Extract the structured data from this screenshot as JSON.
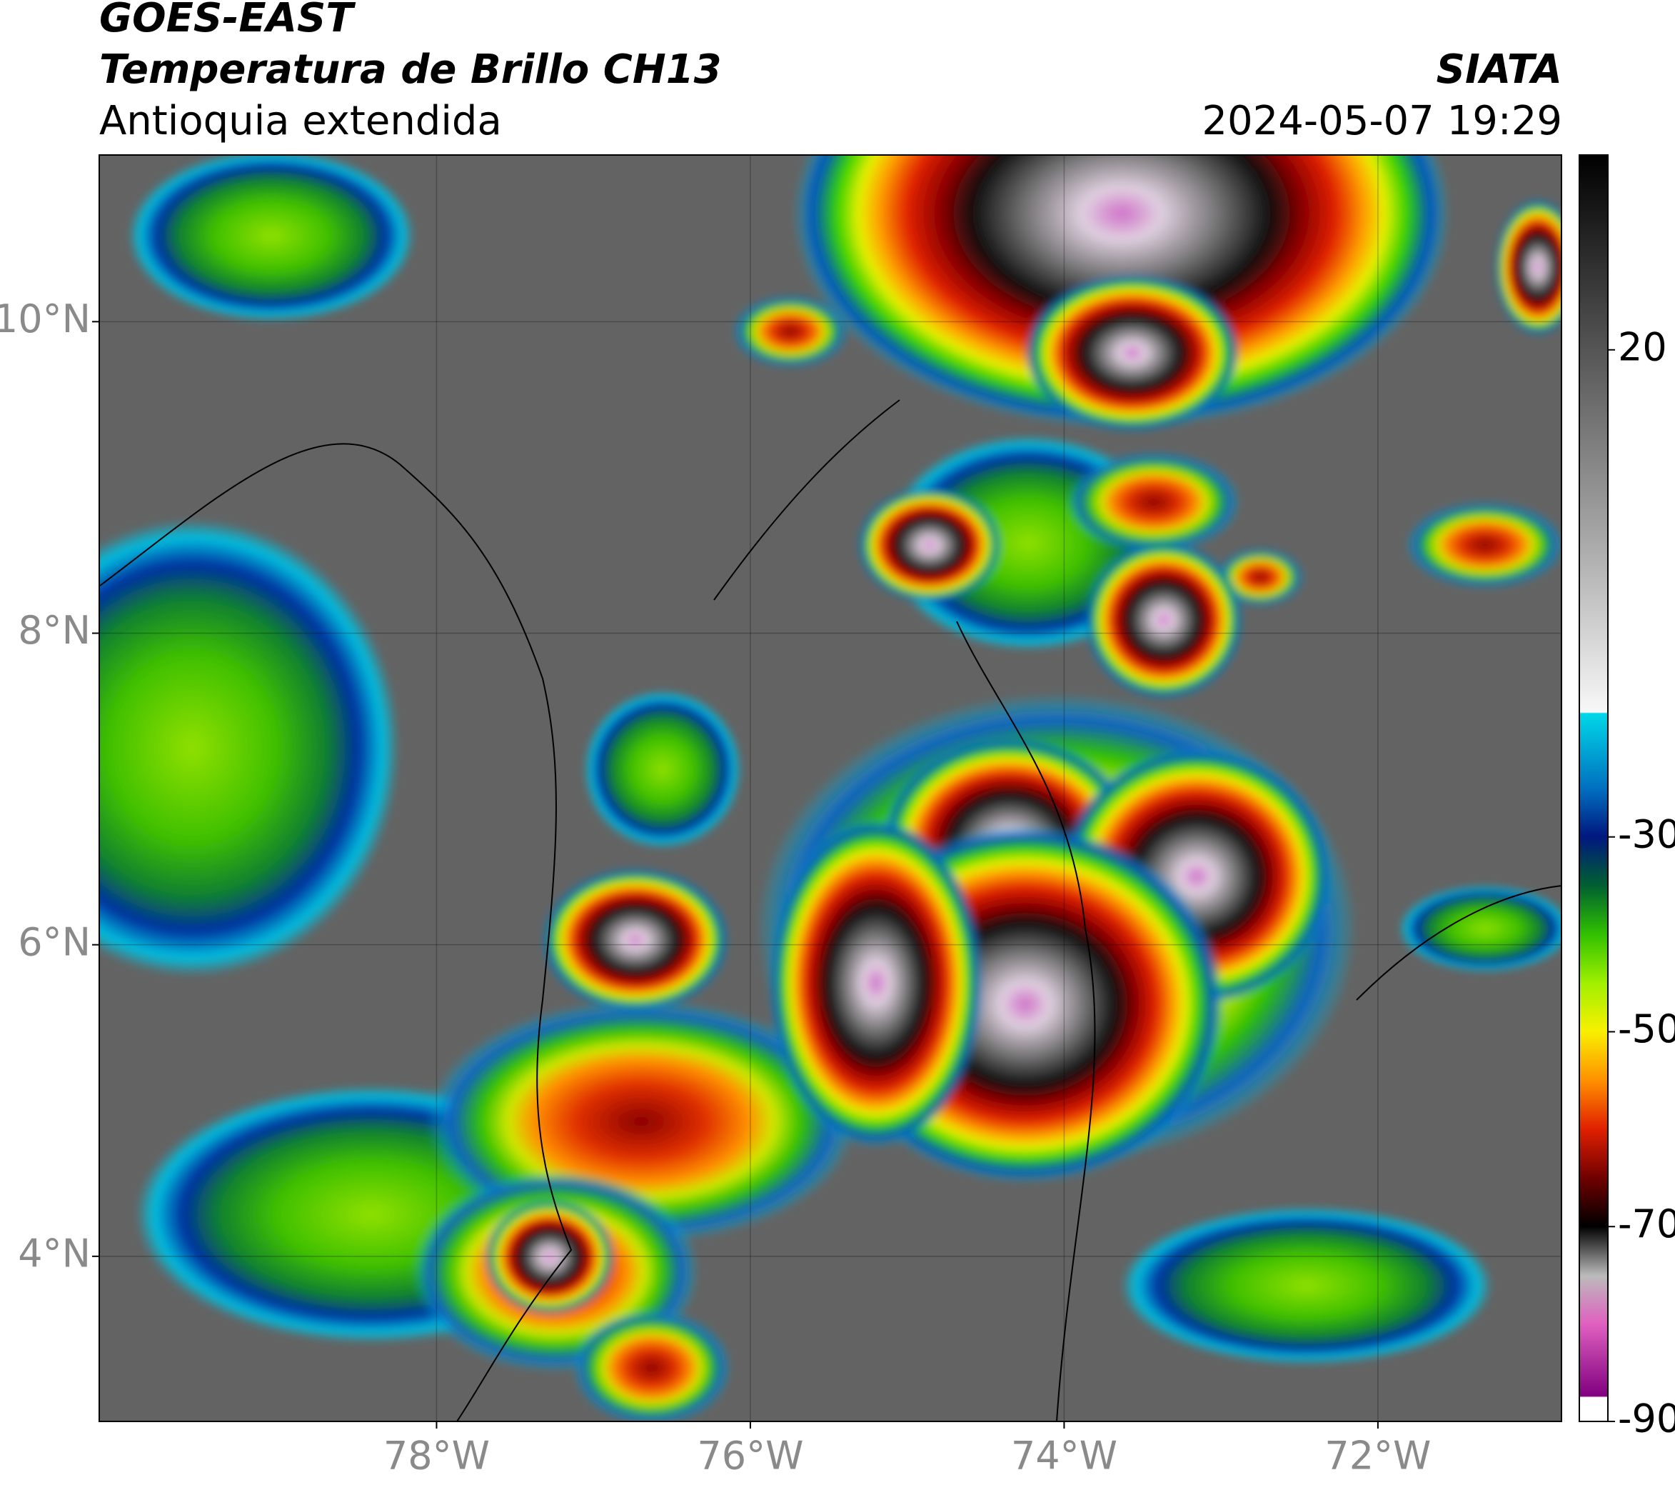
{
  "header": {
    "satellite": "GOES-EAST",
    "product": "Temperatura de Brillo CH13",
    "region": "Antioquia extendida",
    "agency": "SIATA",
    "datetime": "2024-05-07 19:29"
  },
  "map": {
    "xlim": [
      -80.15,
      -70.83
    ],
    "ylim": [
      2.94,
      11.07
    ],
    "xticks": [
      {
        "value": -78,
        "label": "78°W"
      },
      {
        "value": -76,
        "label": "76°W"
      },
      {
        "value": -74,
        "label": "74°W"
      },
      {
        "value": -72,
        "label": "72°W"
      }
    ],
    "yticks": [
      {
        "value": 4,
        "label": "4°N"
      },
      {
        "value": 6,
        "label": "6°N"
      },
      {
        "value": 8,
        "label": "8°N"
      },
      {
        "value": 10,
        "label": "10°N"
      }
    ],
    "grid": true
  },
  "colorbar": {
    "lim": [
      -90,
      40
    ],
    "ticks": [
      -90,
      -70,
      -50,
      -30,
      20
    ]
  }
}
